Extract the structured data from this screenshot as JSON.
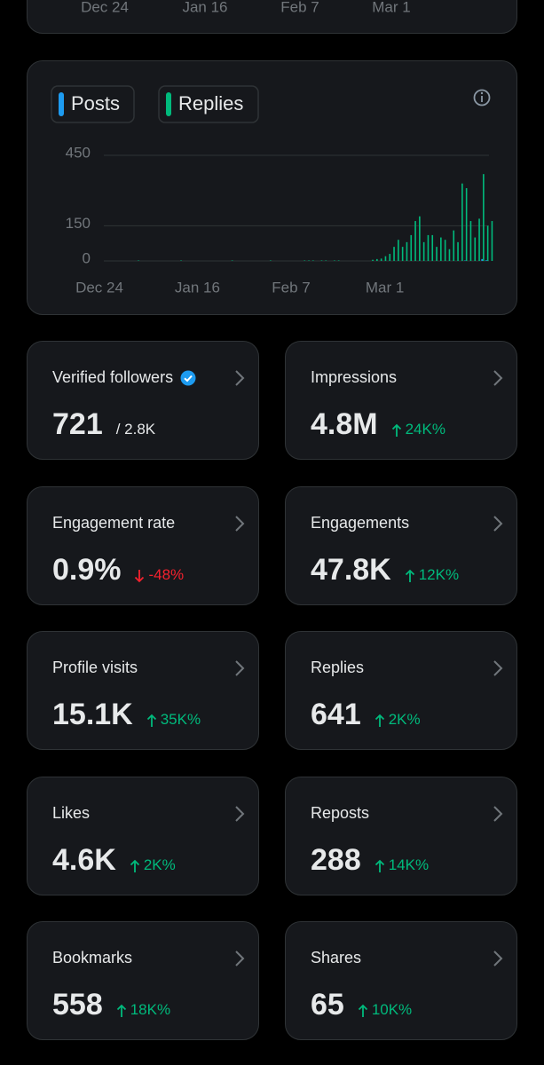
{
  "top_axis_labels": [
    "Dec 24",
    "Jan 16",
    "Feb 7",
    "Mar 1"
  ],
  "chart_data": {
    "type": "bar",
    "categories": [
      "Dec 24",
      null,
      null,
      null,
      null,
      null,
      null,
      null,
      null,
      null,
      null,
      null,
      null,
      null,
      null,
      null,
      null,
      null,
      null,
      null,
      null,
      null,
      null,
      "Jan 16",
      null,
      null,
      null,
      null,
      null,
      null,
      null,
      null,
      null,
      null,
      null,
      null,
      null,
      null,
      null,
      null,
      null,
      null,
      null,
      null,
      null,
      "Feb 7",
      null,
      null,
      null,
      null,
      null,
      null,
      null,
      null,
      null,
      null,
      null,
      null,
      null,
      null,
      null,
      null,
      null,
      null,
      null,
      null,
      null,
      "Mar 1",
      null,
      null,
      null,
      null,
      null,
      null,
      null,
      null,
      null,
      null,
      null,
      null,
      null,
      null,
      null,
      null,
      null,
      null,
      null,
      null,
      null,
      null,
      null,
      null,
      null
    ],
    "series": [
      {
        "name": "Posts",
        "color": "#1d9bf0",
        "values": [
          0,
          0,
          0,
          0,
          0,
          0,
          0,
          0,
          0,
          0,
          0,
          0,
          0,
          0,
          0,
          0,
          0,
          0,
          0,
          0,
          0,
          0,
          0,
          0,
          0,
          0,
          0,
          0,
          0,
          0,
          0,
          0,
          0,
          0,
          0,
          0,
          0,
          0,
          0,
          0,
          0,
          0,
          0,
          0,
          0,
          0,
          0,
          0,
          0,
          0,
          0,
          0,
          0,
          0,
          0,
          0,
          0,
          0,
          0,
          0,
          0,
          0,
          0,
          0,
          0,
          0,
          0,
          0,
          0,
          0,
          0,
          0,
          0,
          0,
          0,
          0,
          0,
          0,
          0,
          0,
          0,
          0,
          0,
          0,
          0,
          0,
          2,
          0,
          0,
          0,
          8,
          3,
          0
        ]
      },
      {
        "name": "Replies",
        "color": "#00ba7c",
        "values": [
          0,
          0,
          0,
          0,
          0,
          0,
          0,
          0,
          0,
          2,
          0,
          0,
          0,
          0,
          0,
          0,
          0,
          0,
          0,
          2,
          0,
          0,
          0,
          0,
          0,
          0,
          0,
          0,
          0,
          0,
          0,
          2,
          0,
          0,
          0,
          0,
          0,
          0,
          0,
          0,
          2,
          0,
          0,
          0,
          0,
          0,
          0,
          0,
          2,
          2,
          2,
          0,
          2,
          2,
          0,
          2,
          2,
          0,
          0,
          0,
          0,
          0,
          0,
          0,
          5,
          8,
          10,
          20,
          30,
          60,
          90,
          60,
          80,
          110,
          170,
          190,
          80,
          110,
          110,
          60,
          100,
          90,
          50,
          130,
          80,
          330,
          310,
          170,
          100,
          180,
          370,
          150,
          170
        ]
      }
    ],
    "ylim": [
      0,
      450
    ],
    "yticks": [
      0,
      150,
      450
    ],
    "grid": true
  },
  "metrics": [
    {
      "label": "Verified followers",
      "value": "721",
      "total": "/ 2.8K",
      "verified": true
    },
    {
      "label": "Impressions",
      "value": "4.8M",
      "change": "24K%",
      "direction": "up",
      "color": "#00ba7c"
    },
    {
      "label": "Engagement rate",
      "value": "0.9%",
      "change": "-48%",
      "direction": "down",
      "color": "#f4212e"
    },
    {
      "label": "Engagements",
      "value": "47.8K",
      "change": "12K%",
      "direction": "up",
      "color": "#00ba7c"
    },
    {
      "label": "Profile visits",
      "value": "15.1K",
      "change": "35K%",
      "direction": "up",
      "color": "#00ba7c"
    },
    {
      "label": "Replies",
      "value": "641",
      "change": "2K%",
      "direction": "up",
      "color": "#00ba7c"
    },
    {
      "label": "Likes",
      "value": "4.6K",
      "change": "2K%",
      "direction": "up",
      "color": "#00ba7c"
    },
    {
      "label": "Reposts",
      "value": "288",
      "change": "14K%",
      "direction": "up",
      "color": "#00ba7c"
    },
    {
      "label": "Bookmarks",
      "value": "558",
      "change": "18K%",
      "direction": "up",
      "color": "#00ba7c"
    },
    {
      "label": "Shares",
      "value": "65",
      "change": "10K%",
      "direction": "up",
      "color": "#00ba7c"
    }
  ]
}
